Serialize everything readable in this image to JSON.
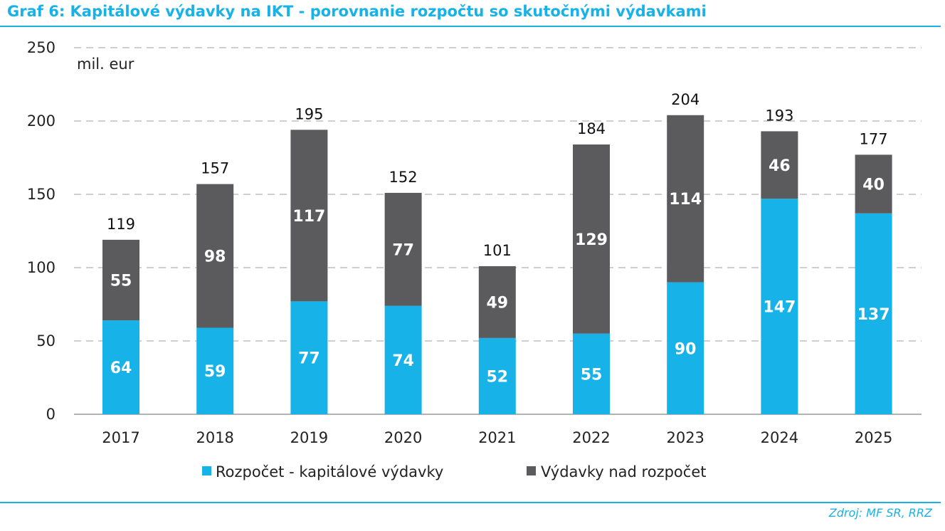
{
  "header": {
    "title": "Graf 6: Kapitálové výdavky na IKT - porovnanie rozpočtu so skutočnými výdavkami"
  },
  "footer": {
    "source": "Zdroj: MF SR, RRZ"
  },
  "colors": {
    "accent": "#17b2e8",
    "budget": "#17b2e8",
    "over_budget": "#5b5b5d",
    "grid": "#bfbfbf"
  },
  "chart_data": {
    "type": "bar",
    "stacked": true,
    "unit": "mil. eur",
    "categories": [
      "2017",
      "2018",
      "2019",
      "2020",
      "2021",
      "2022",
      "2023",
      "2024",
      "2025"
    ],
    "series": [
      {
        "name": "Rozpočet - kapitálové výdavky",
        "values": [
          64,
          59,
          77,
          74,
          52,
          55,
          90,
          147,
          137
        ]
      },
      {
        "name": "Výdavky nad rozpočet",
        "values": [
          55,
          98,
          117,
          77,
          49,
          129,
          114,
          46,
          40
        ]
      }
    ],
    "totals": [
      119,
      157,
      195,
      152,
      101,
      184,
      204,
      193,
      177
    ],
    "ylim": [
      0,
      250
    ],
    "yticks": [
      0,
      50,
      100,
      150,
      200,
      250
    ],
    "grid": true,
    "legend_position": "bottom"
  }
}
